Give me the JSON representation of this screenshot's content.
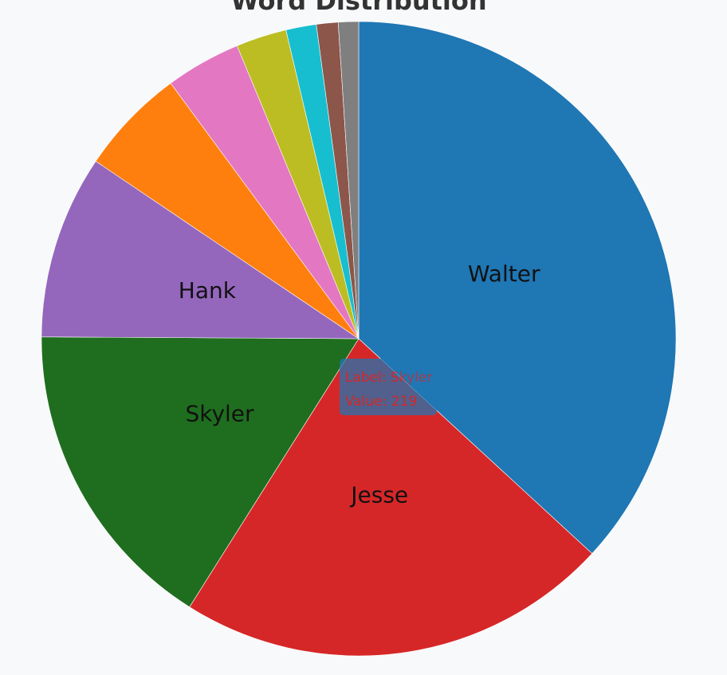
{
  "chart_data": {
    "type": "pie",
    "title": "Word Distribution",
    "slices": [
      {
        "label": "Walter",
        "value": 500,
        "color": "#1f77b4",
        "show_label": true
      },
      {
        "label": "Jesse",
        "value": 300,
        "color": "#d62728",
        "show_label": true
      },
      {
        "label": "Skyler",
        "value": 219,
        "color": "#1f6e1f",
        "show_label": true
      },
      {
        "label": "Hank",
        "value": 127,
        "color": "#9467bd",
        "show_label": true
      },
      {
        "label": "",
        "value": 74,
        "color": "#ff7f0e",
        "show_label": false
      },
      {
        "label": "",
        "value": 52,
        "color": "#e377c2",
        "show_label": false
      },
      {
        "label": "",
        "value": 35,
        "color": "#bcbd22",
        "show_label": false
      },
      {
        "label": "",
        "value": 21,
        "color": "#17becf",
        "show_label": false
      },
      {
        "label": "",
        "value": 15,
        "color": "#8c564b",
        "show_label": false
      },
      {
        "label": "",
        "value": 14,
        "color": "#7f7f7f",
        "show_label": false
      }
    ]
  },
  "tooltip": {
    "label_text": "Label: Skyler",
    "value_text": "Value: 219",
    "background": "#1f77b4"
  },
  "background_color": "#f8f9fa"
}
